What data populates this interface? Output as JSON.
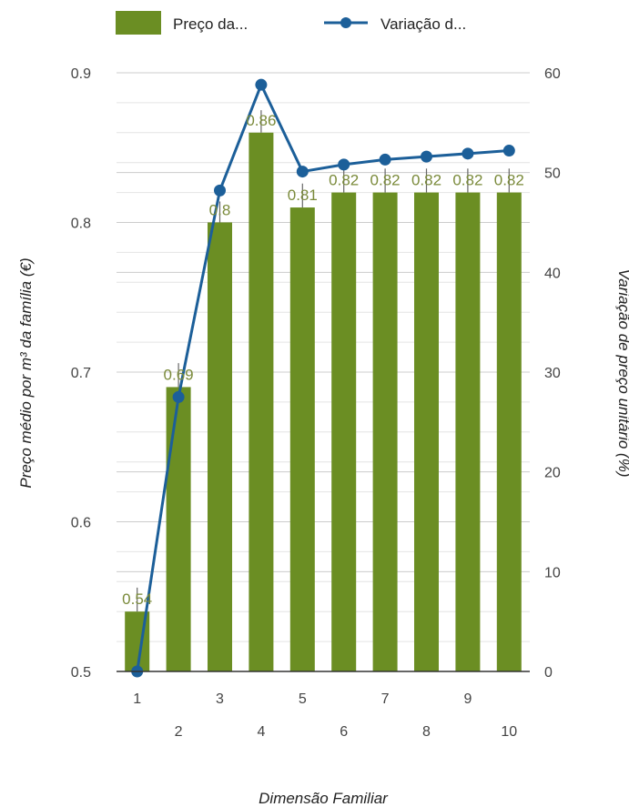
{
  "chart_data": {
    "type": "bar",
    "categories": [
      "1",
      "2",
      "3",
      "4",
      "5",
      "6",
      "7",
      "8",
      "9",
      "10"
    ],
    "series": [
      {
        "name": "Preço da...",
        "type": "bar",
        "axis": "left",
        "color": "#6b8e23",
        "values": [
          0.54,
          0.69,
          0.8,
          0.86,
          0.81,
          0.82,
          0.82,
          0.82,
          0.82,
          0.82
        ],
        "data_labels": [
          "0.54",
          "0.69",
          "0.8",
          "0.86",
          "0.81",
          "0.82",
          "0.82",
          "0.82",
          "0.82",
          "0.82"
        ],
        "error_high": [
          0.556,
          0.706,
          0.814,
          0.875,
          0.826,
          0.836,
          0.836,
          0.836,
          0.836,
          0.836
        ]
      },
      {
        "name": "Variação d...",
        "type": "line",
        "axis": "right",
        "color": "#1c5f99",
        "values": [
          0,
          27.5,
          48.2,
          58.8,
          50.1,
          50.8,
          51.3,
          51.6,
          51.9,
          52.2
        ]
      }
    ],
    "xlabel": "Dimensão Familiar",
    "ylabel": "Preço médio por m³ da família (€)",
    "y2label": "Variação de preço unitário (%)",
    "ylim": [
      0.5,
      0.9
    ],
    "y2lim": [
      0,
      60
    ],
    "yticks": [
      "0.5",
      "0.6",
      "0.7",
      "0.8",
      "0.9"
    ],
    "y2ticks": [
      "0",
      "10",
      "20",
      "30",
      "40",
      "50",
      "60"
    ],
    "legend_position": "top",
    "grid": true
  }
}
